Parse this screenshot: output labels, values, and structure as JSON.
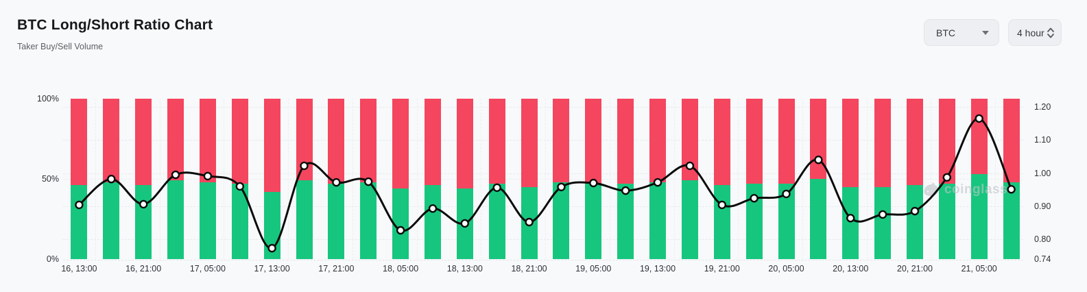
{
  "header": {
    "title": "BTC Long/Short Ratio Chart",
    "subtitle": "Taker Buy/Sell Volume",
    "symbol_select": {
      "value": "BTC"
    },
    "interval_select": {
      "value": "4 hour"
    }
  },
  "watermark": {
    "text": "coinglass"
  },
  "colors": {
    "long_green": "#17c67e",
    "short_red": "#f4465f",
    "ratio_line": "#0b0b0b",
    "marker_fill": "#ffffff",
    "page_bg": "#f8f9fa"
  },
  "chart_data": {
    "type": "stacked-bar+line",
    "title": "BTC Long/Short Ratio Chart",
    "subtitle": "Taker Buy/Sell Volume",
    "categories": [
      "16, 13:00",
      "16, 21:00",
      "17, 05:00",
      "17, 13:00",
      "17, 21:00",
      "18, 05:00",
      "18, 13:00",
      "18, 21:00",
      "19, 05:00",
      "19, 13:00",
      "19, 21:00",
      "20, 05:00",
      "20, 13:00",
      "20, 21:00",
      "21, 05:00"
    ],
    "categories_note": "labels shown under every 2nd bar (30 bars total, 4-hour candles)",
    "series": [
      {
        "name": "Long %",
        "type": "bar",
        "stack": true,
        "color": "#17c67e",
        "axis": "left",
        "values": [
          46,
          48,
          46,
          49,
          48,
          47,
          42,
          49,
          47,
          48,
          44,
          46,
          44,
          47,
          45,
          48,
          47,
          47,
          48,
          49,
          46,
          47,
          47,
          50,
          45,
          45,
          46,
          47,
          53,
          48
        ]
      },
      {
        "name": "Short %",
        "type": "bar",
        "stack": true,
        "color": "#f4465f",
        "axis": "left",
        "values": [
          54,
          52,
          54,
          51,
          52,
          53,
          58,
          51,
          53,
          52,
          56,
          54,
          56,
          53,
          55,
          52,
          53,
          53,
          52,
          51,
          54,
          53,
          53,
          50,
          55,
          55,
          54,
          53,
          47,
          52
        ]
      },
      {
        "name": "Long/Short Ratio",
        "type": "line",
        "color": "#0b0b0b",
        "axis": "right",
        "values": [
          0.904,
          0.982,
          0.906,
          0.995,
          0.991,
          0.96,
          0.773,
          1.022,
          0.972,
          0.974,
          0.827,
          0.893,
          0.848,
          0.956,
          0.852,
          0.958,
          0.97,
          0.947,
          0.972,
          1.022,
          0.904,
          0.924,
          0.937,
          1.04,
          0.864,
          0.875,
          0.885,
          0.987,
          1.165,
          0.951
        ]
      }
    ],
    "left_axis": {
      "ticks": [
        "0%",
        "50%",
        "100%"
      ],
      "range": [
        0,
        100
      ]
    },
    "right_axis": {
      "ticks": [
        0.74,
        0.8,
        0.9,
        1.0,
        1.1,
        1.2
      ],
      "range": [
        0.74,
        1.225
      ]
    },
    "grid": "horizontal dashed at right-axis ticks, faint vertical dashed every 2 bars",
    "legend": "none"
  }
}
